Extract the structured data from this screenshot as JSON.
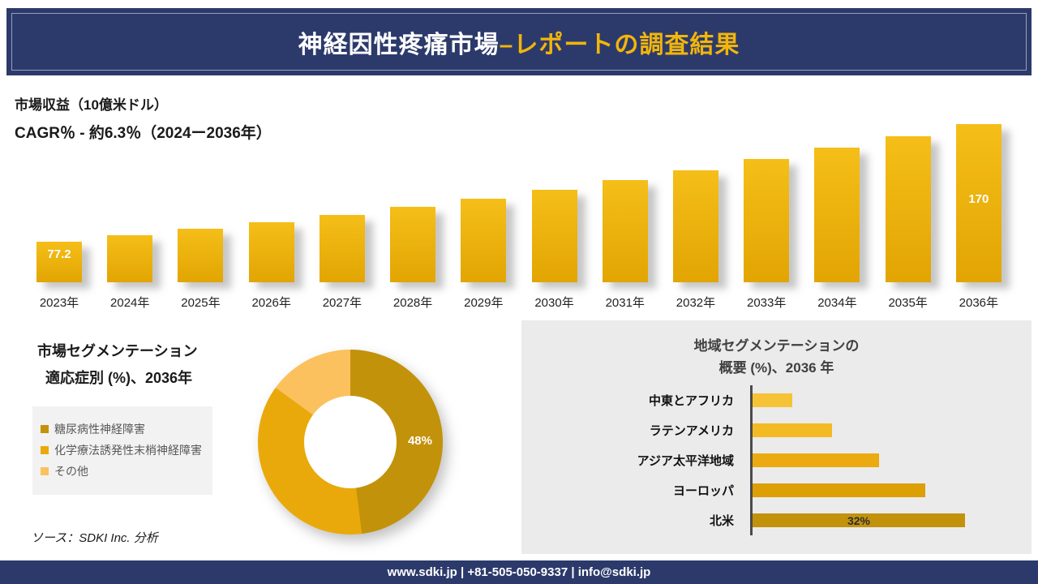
{
  "header": {
    "title_main": "神経因性疼痛市場",
    "title_accent": "–レポートの調査結果"
  },
  "revenue": {
    "title": "市場収益（10億米ドル）",
    "cagr": "CAGR％ - 約6.3％（2024ー2036年）",
    "value_labels": [
      {
        "index": 0,
        "text": "77.2"
      },
      {
        "index": 13,
        "text": "170"
      }
    ]
  },
  "segmentation": {
    "title_line1": "市場セグメンテーション",
    "title_line2": "適応症別 (%)、2036年",
    "legend": [
      {
        "label": "糖尿病性神経障害",
        "color": "#C3920B"
      },
      {
        "label": "化学療法誘発性末梢神経障害",
        "color": "#E9A90A"
      },
      {
        "label": "その他",
        "color": "#FBC15E"
      }
    ],
    "donut_label": "48%",
    "source": "ソース：SDKI Inc. 分析"
  },
  "regional": {
    "title_line1": "地域セグメンテーションの",
    "title_line2": "概要 (%)、2036 年",
    "bars": [
      {
        "label": "中東とアフリカ",
        "value": 6,
        "color": "#F5C335",
        "label_inside": ""
      },
      {
        "label": "ラテンアメリカ",
        "value": 12,
        "color": "#F3BA24",
        "label_inside": ""
      },
      {
        "label": "アジア太平洋地域",
        "value": 19,
        "color": "#EBAB10",
        "label_inside": ""
      },
      {
        "label": "ヨーロッパ",
        "value": 26,
        "color": "#DC9F05",
        "label_inside": ""
      },
      {
        "label": "北米",
        "value": 32,
        "color": "#C3920B",
        "label_inside": "32%"
      }
    ]
  },
  "footer": {
    "text": "www.sdki.jp | +81-505-050-9337 | info@sdki.jp"
  },
  "chart_data": [
    {
      "type": "bar",
      "title": "市場収益（10億米ドル）",
      "subtitle": "CAGR％ - 約6.3％（2024ー2036年）",
      "categories": [
        "2023年",
        "2024年",
        "2025年",
        "2026年",
        "2027年",
        "2028年",
        "2029年",
        "2030年",
        "2031年",
        "2032年",
        "2033年",
        "2034年",
        "2035年",
        "2036年"
      ],
      "values": [
        77.2,
        82.1,
        87.2,
        92.7,
        98.6,
        104.8,
        111.4,
        118.4,
        125.9,
        133.8,
        142.2,
        151.2,
        160.7,
        170
      ],
      "data_labels_shown": {
        "2023年": 77.2,
        "2036年": 170
      },
      "ylabel": "10億米ドル",
      "ylim": [
        0,
        180
      ],
      "grid": false,
      "legend_position": "none",
      "bar_color": "#E9AB0B"
    },
    {
      "type": "pie",
      "donut": true,
      "title": "市場セグメンテーション 適応症別 (%)、2036年",
      "labels": [
        "糖尿病性神経障害",
        "化学療法誘発性末梢神経障害",
        "その他"
      ],
      "values": [
        48,
        37,
        15
      ],
      "shown_label": "48%",
      "colors": [
        "#C3920B",
        "#E9A90A",
        "#FBC15E"
      ],
      "legend_position": "left"
    },
    {
      "type": "bar",
      "orientation": "horizontal",
      "title": "地域セグメンテーションの 概要 (%)、2036 年",
      "categories": [
        "中東とアフリカ",
        "ラテンアメリカ",
        "アジア太平洋地域",
        "ヨーロッパ",
        "北米"
      ],
      "values": [
        6,
        12,
        19,
        26,
        32
      ],
      "data_labels_shown": {
        "北米": "32%"
      },
      "xlim": [
        0,
        35
      ],
      "grid": false
    }
  ]
}
